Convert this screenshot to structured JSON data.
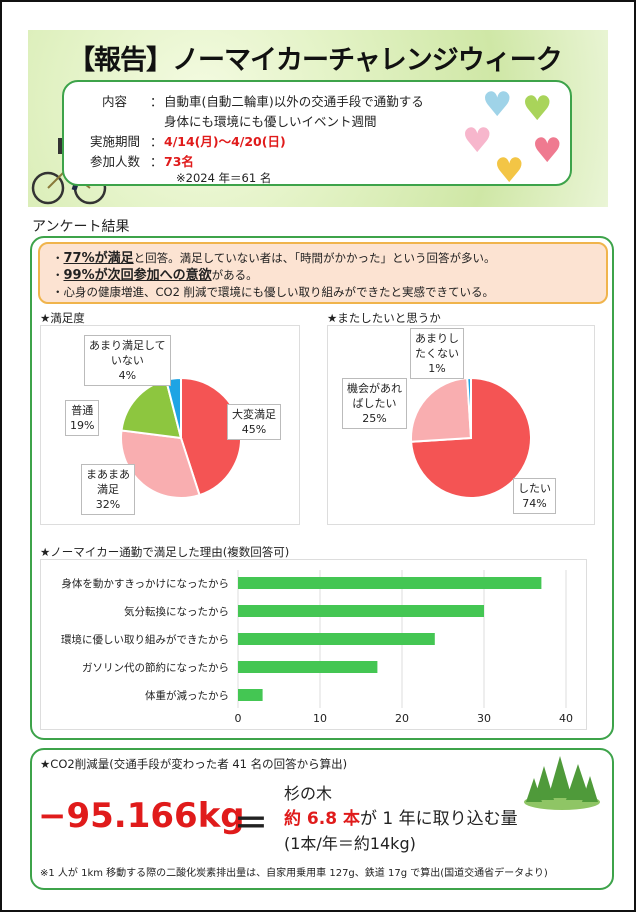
{
  "header": {
    "title": "【報告】ノーマイカーチャレンジウィーク",
    "content_label": "内容",
    "content_line1": "自動車(自動二輪車)以外の交通手段で通勤する",
    "content_line2": "身体にも環境にも優しいイベント週間",
    "period_label": "実施期間",
    "period_value": "4/14(月)～4/20(日)",
    "participants_label": "参加人数",
    "participants_value": "73名",
    "prev_year_note": "※2024 年＝61 名",
    "colon": "："
  },
  "survey": {
    "section_title": "アンケート結果",
    "summary": [
      {
        "bold": "77%が満足",
        "rest": "と回答。満足していない者は、「時間がかかった」という回答が多い。"
      },
      {
        "bold": "99%が次回参加への意欲",
        "rest": "がある。"
      },
      {
        "bold": "",
        "rest": "心身の健康増進、CO2 削減で環境にも優しい取り組みができたと実感できている。"
      }
    ],
    "bullet": "・"
  },
  "chart_data": [
    {
      "type": "pie",
      "title": "★満足度",
      "categories": [
        "大変満足",
        "まあまあ満足",
        "普通",
        "あまり満足していない"
      ],
      "values": [
        45,
        32,
        19,
        4
      ],
      "labels": [
        [
          "大変満足",
          "45%"
        ],
        [
          "まあまあ",
          "満足",
          "32%"
        ],
        [
          "普通",
          "19%"
        ],
        [
          "あまり満足して",
          "いない",
          "4%"
        ]
      ],
      "colors": [
        "#f45454",
        "#f9aeb0",
        "#8dc63f",
        "#1ea4e4"
      ]
    },
    {
      "type": "pie",
      "title": "★またしたいと思うか",
      "categories": [
        "したい",
        "機会があればしたい",
        "あまりしたくない"
      ],
      "values": [
        74,
        25,
        1
      ],
      "labels": [
        [
          "したい",
          "74%"
        ],
        [
          "機会があれ",
          "ばしたい",
          "25%"
        ],
        [
          "あまりし",
          "たくない",
          "1%"
        ]
      ],
      "colors": [
        "#f45454",
        "#f9aeb0",
        "#1ea4e4"
      ]
    },
    {
      "type": "bar",
      "orientation": "horizontal",
      "title": "★ノーマイカー通勤で満足した理由(複数回答可)",
      "categories": [
        "身体を動かすきっかけになったから",
        "気分転換になったから",
        "環境に優しい取り組みができたから",
        "ガソリン代の節約になったから",
        "体重が減ったから"
      ],
      "values": [
        37,
        30,
        24,
        17,
        3
      ],
      "xlim": [
        0,
        40
      ],
      "xticks": [
        "0",
        "10",
        "20",
        "30",
        "40"
      ],
      "color": "#44c653",
      "grid": true
    }
  ],
  "co2": {
    "title": "★CO2削減量(交通手段が変わった者 41 名の回答から算出)",
    "amount": "−95.166kg",
    "equals": "＝",
    "tree_label": "杉の木",
    "tree_count": "約 6.8 本",
    "tree_rest": "が 1 年に取り込む量",
    "tree_rate": "(1本/年＝約14kg)",
    "footnote": "※1 人が 1km 移動する際の二酸化炭素排出量は、自家用乗用車 127g、鉄道 17g で算出(国道交通省データより)"
  }
}
